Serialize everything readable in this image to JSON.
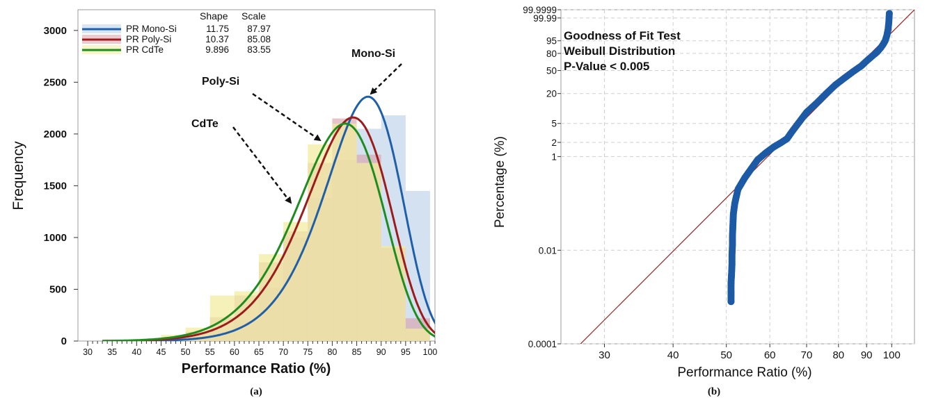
{
  "chart_data": [
    {
      "type": "histogram",
      "panel_label": "(a)",
      "xlabel": "Performance Ratio (%)",
      "ylabel": "Frequency",
      "xlim": [
        28,
        101
      ],
      "ylim": [
        0,
        3200
      ],
      "xticks": [
        30,
        35,
        40,
        45,
        50,
        55,
        60,
        65,
        70,
        75,
        80,
        85,
        90,
        95,
        100
      ],
      "yticks": [
        0,
        500,
        1000,
        1500,
        2000,
        2500,
        3000
      ],
      "legend": {
        "position": "top-left",
        "headers": [
          "Shape",
          "Scale"
        ],
        "entries": [
          {
            "name": "PR Mono-Si",
            "shape": "11.75",
            "scale": "87.97",
            "color": "#1f5fa8",
            "fill": "#b8cfe9"
          },
          {
            "name": "PR Poly-Si",
            "shape": "10.37",
            "scale": "85.08",
            "color": "#9b1c1c",
            "fill": "#d9a0a8"
          },
          {
            "name": "PR CdTe",
            "shape": "9.896",
            "scale": "83.55",
            "color": "#1e8c1e",
            "fill": "#f2ec9e"
          }
        ]
      },
      "fitted_curve_peaks": [
        {
          "series": "PR Mono-Si",
          "peak_x": 87.2,
          "peak_y": 2360
        },
        {
          "series": "PR Poly-Si",
          "peak_x": 84.2,
          "peak_y": 2160
        },
        {
          "series": "PR CdTe",
          "peak_x": 82.5,
          "peak_y": 2100
        }
      ],
      "histogram_bins": {
        "edges": [
          45,
          50,
          55,
          60,
          65,
          70,
          75,
          80,
          85,
          90,
          95,
          100
        ],
        "series": [
          {
            "name": "PR Mono-Si",
            "values": [
              20,
              40,
              100,
              200,
              520,
              1000,
              1380,
              1750,
              2050,
              2180,
              1450
            ]
          },
          {
            "name": "PR Poly-Si",
            "values": [
              40,
              90,
              230,
              440,
              760,
              1060,
              1720,
              2150,
              1800,
              900,
              220
            ]
          },
          {
            "name": "PR CdTe",
            "values": [
              60,
              130,
              440,
              480,
              840,
              1150,
              1900,
              2100,
              1720,
              920,
              120
            ]
          }
        ]
      },
      "annotations": [
        {
          "text": "Mono-Si",
          "points_to": "PR Mono-Si"
        },
        {
          "text": "Poly-Si",
          "points_to": "PR Poly-Si"
        },
        {
          "text": "CdTe",
          "points_to": "PR CdTe"
        }
      ]
    },
    {
      "type": "scatter",
      "panel_label": "(b)",
      "xlabel": "Performance Ratio (%)",
      "ylabel": "Percentage (%)",
      "x_scale": "log",
      "y_scale": "weibull-probability",
      "xlim": [
        25,
        110
      ],
      "ylim": [
        0.0001,
        99.9999
      ],
      "xticks": [
        30,
        40,
        50,
        60,
        70,
        80,
        90,
        100
      ],
      "ytick_labels": [
        "99.9999",
        "99.99",
        "95",
        "80",
        "50",
        "20",
        "5",
        "2",
        "1",
        "0.01",
        "0.0001"
      ],
      "ytick_values": [
        99.9999,
        99.99,
        95,
        80,
        50,
        20,
        5,
        2,
        1,
        0.01,
        0.0001
      ],
      "grid": true,
      "annotation_lines": [
        "Goodness of Fit Test",
        "Weibull Distribution",
        "P-Value < 0.005"
      ],
      "points": {
        "color": "#1c5aa6",
        "x": [
          51.0,
          51.0,
          51.1,
          51.2,
          51.2,
          51.3,
          51.3,
          51.4,
          51.5,
          51.8,
          52.5,
          54.0,
          55.5,
          57.0,
          59.0,
          61.0,
          63.0,
          64.5,
          66.0,
          68.0,
          70.0,
          73.0,
          76.0,
          79.0,
          82.0,
          85.0,
          88.0,
          90.0,
          92.0,
          94.0,
          95.5,
          96.5,
          97.3,
          98.0,
          98.5,
          98.8,
          99.0
        ],
        "y": [
          0.0008,
          0.002,
          0.003,
          0.005,
          0.008,
          0.013,
          0.02,
          0.035,
          0.06,
          0.1,
          0.2,
          0.35,
          0.55,
          0.85,
          1.2,
          1.6,
          2.0,
          2.4,
          3.5,
          5.5,
          8.5,
          13,
          20,
          29,
          38,
          48,
          58,
          67,
          75,
          82,
          88,
          92,
          95,
          98,
          99.5,
          99.95,
          99.999
        ]
      },
      "fit_line": {
        "shape": 11.75,
        "scale": 87.97,
        "color": "#a02020"
      }
    }
  ]
}
